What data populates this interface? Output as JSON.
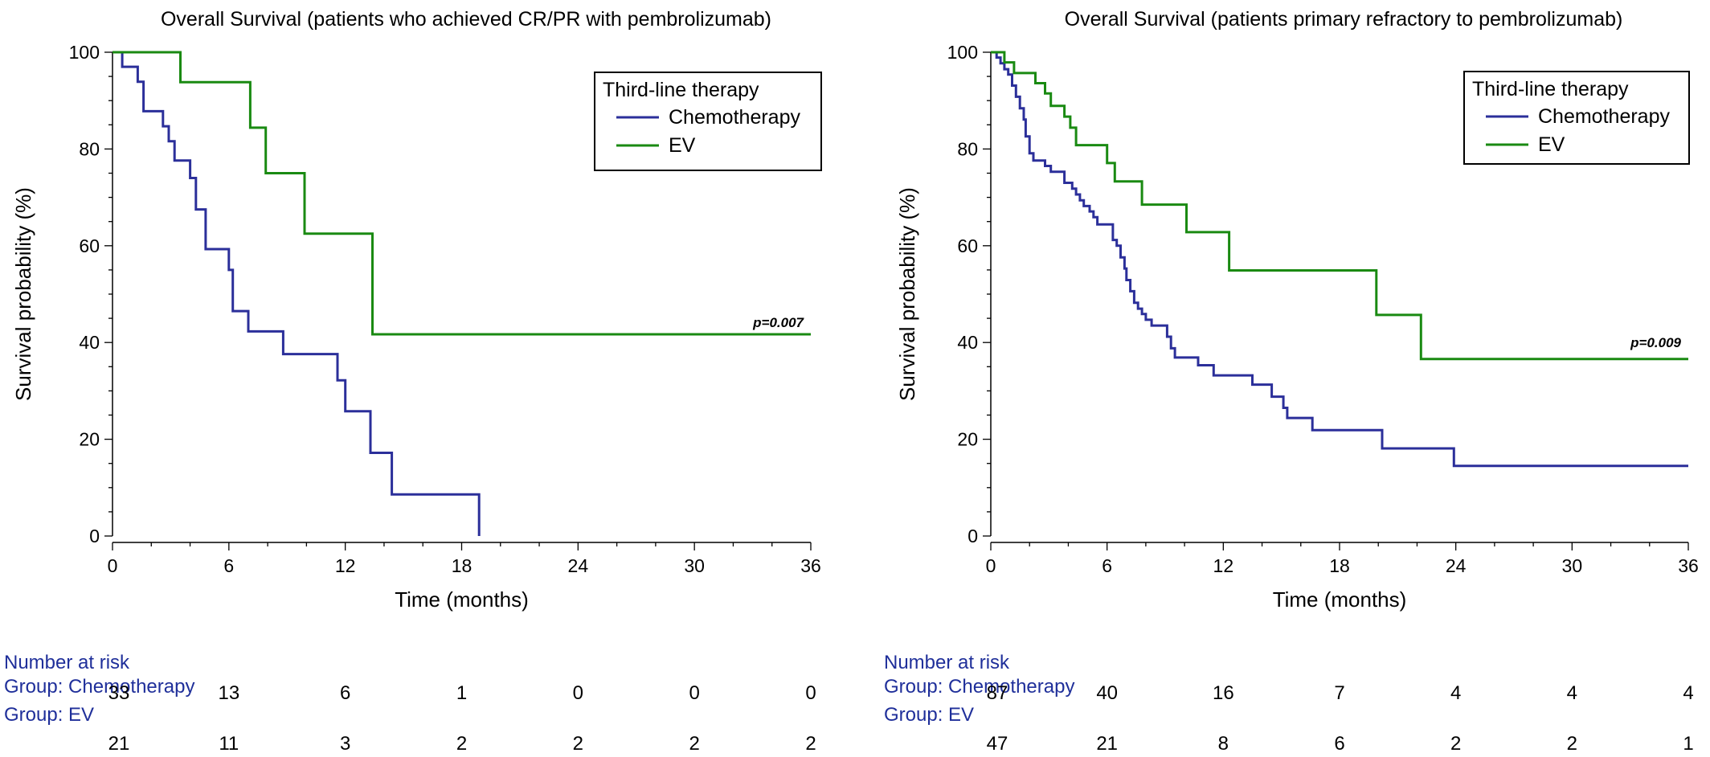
{
  "colors": {
    "chemotherapy": "#2b2f9a",
    "ev": "#1a8a12",
    "risk_header": "#1f2f9a",
    "axis": "#000000"
  },
  "chart_data": [
    {
      "type": "line",
      "step": true,
      "title": "Overall Survival (patients who achieved CR/PR with pembrolizumab)",
      "xlabel": "Time (months)",
      "ylabel": "Survival probability (%)",
      "xlim": [
        0,
        36
      ],
      "ylim": [
        0,
        100
      ],
      "xticks": [
        0,
        6,
        12,
        18,
        24,
        30,
        36
      ],
      "yticks": [
        0,
        20,
        40,
        60,
        80,
        100
      ],
      "grid": false,
      "legend": {
        "title": "Third-line therapy",
        "placement": "top-right"
      },
      "annotation": "p=0.007",
      "series": [
        {
          "name": "Chemotherapy",
          "color": "#2b2f9a",
          "points": [
            [
              0,
              100
            ],
            [
              0.5,
              100
            ],
            [
              0.5,
              97
            ],
            [
              1.3,
              97
            ],
            [
              1.3,
              93.9
            ],
            [
              1.6,
              93.9
            ],
            [
              1.6,
              87.8
            ],
            [
              2.6,
              87.8
            ],
            [
              2.6,
              84.7
            ],
            [
              2.9,
              84.7
            ],
            [
              2.9,
              81.6
            ],
            [
              3.2,
              81.6
            ],
            [
              3.2,
              77.6
            ],
            [
              4.0,
              77.6
            ],
            [
              4.0,
              74
            ],
            [
              4.3,
              74
            ],
            [
              4.3,
              67.5
            ],
            [
              4.8,
              67.5
            ],
            [
              4.8,
              59.3
            ],
            [
              6.0,
              59.3
            ],
            [
              6.0,
              55
            ],
            [
              6.2,
              55
            ],
            [
              6.2,
              46.5
            ],
            [
              7.0,
              46.5
            ],
            [
              7.0,
              42.3
            ],
            [
              8.8,
              42.3
            ],
            [
              8.8,
              37.6
            ],
            [
              11.6,
              37.6
            ],
            [
              11.6,
              32.2
            ],
            [
              12.0,
              32.2
            ],
            [
              12.0,
              25.8
            ],
            [
              13.3,
              25.8
            ],
            [
              13.3,
              17.2
            ],
            [
              14.4,
              17.2
            ],
            [
              14.4,
              8.6
            ],
            [
              18.9,
              8.6
            ],
            [
              18.9,
              0
            ]
          ]
        },
        {
          "name": "EV",
          "color": "#1a8a12",
          "points": [
            [
              0,
              100
            ],
            [
              3.5,
              100
            ],
            [
              3.5,
              93.8
            ],
            [
              7.1,
              93.8
            ],
            [
              7.1,
              84.4
            ],
            [
              7.9,
              84.4
            ],
            [
              7.9,
              75
            ],
            [
              9.9,
              75
            ],
            [
              9.9,
              62.5
            ],
            [
              13.4,
              62.5
            ],
            [
              13.4,
              41.7
            ],
            [
              36,
              41.7
            ]
          ]
        }
      ]
    },
    {
      "type": "line",
      "step": true,
      "title": "Overall Survival (patients primary refractory to pembrolizumab)",
      "xlabel": "Time (months)",
      "ylabel": "Survival probability (%)",
      "xlim": [
        0,
        36
      ],
      "ylim": [
        0,
        100
      ],
      "xticks": [
        0,
        6,
        12,
        18,
        24,
        30,
        36
      ],
      "yticks": [
        0,
        20,
        40,
        60,
        80,
        100
      ],
      "grid": false,
      "legend": {
        "title": "Third-line therapy",
        "placement": "top-right"
      },
      "annotation": "p=0.009",
      "series": [
        {
          "name": "Chemotherapy",
          "color": "#2b2f9a",
          "points": [
            [
              0,
              100
            ],
            [
              0.3,
              100
            ],
            [
              0.3,
              98.9
            ],
            [
              0.5,
              98.9
            ],
            [
              0.5,
              97.7
            ],
            [
              0.7,
              97.7
            ],
            [
              0.7,
              96.5
            ],
            [
              0.9,
              96.5
            ],
            [
              0.9,
              95.4
            ],
            [
              1.1,
              95.4
            ],
            [
              1.1,
              93.1
            ],
            [
              1.3,
              93.1
            ],
            [
              1.3,
              90.8
            ],
            [
              1.5,
              90.8
            ],
            [
              1.5,
              88.4
            ],
            [
              1.7,
              88.4
            ],
            [
              1.7,
              86.1
            ],
            [
              1.8,
              86.1
            ],
            [
              1.8,
              82.6
            ],
            [
              2.0,
              82.6
            ],
            [
              2.0,
              79.1
            ],
            [
              2.2,
              79.1
            ],
            [
              2.2,
              77.6
            ],
            [
              2.8,
              77.6
            ],
            [
              2.8,
              76.5
            ],
            [
              3.1,
              76.5
            ],
            [
              3.1,
              75.3
            ],
            [
              3.8,
              75.3
            ],
            [
              3.8,
              73
            ],
            [
              4.2,
              73
            ],
            [
              4.2,
              71.8
            ],
            [
              4.4,
              71.8
            ],
            [
              4.4,
              70.6
            ],
            [
              4.6,
              70.6
            ],
            [
              4.6,
              69.4
            ],
            [
              4.8,
              69.4
            ],
            [
              4.8,
              68.2
            ],
            [
              5.1,
              68.2
            ],
            [
              5.1,
              67.1
            ],
            [
              5.3,
              67.1
            ],
            [
              5.3,
              65.9
            ],
            [
              5.5,
              65.9
            ],
            [
              5.5,
              64.4
            ],
            [
              6.3,
              64.4
            ],
            [
              6.3,
              61.2
            ],
            [
              6.5,
              61.2
            ],
            [
              6.5,
              60
            ],
            [
              6.7,
              60
            ],
            [
              6.7,
              57.6
            ],
            [
              6.9,
              57.6
            ],
            [
              6.9,
              55.3
            ],
            [
              7.0,
              55.3
            ],
            [
              7.0,
              52.9
            ],
            [
              7.2,
              52.9
            ],
            [
              7.2,
              50.6
            ],
            [
              7.4,
              50.6
            ],
            [
              7.4,
              48.2
            ],
            [
              7.6,
              48.2
            ],
            [
              7.6,
              47
            ],
            [
              7.8,
              47
            ],
            [
              7.8,
              45.9
            ],
            [
              8.0,
              45.9
            ],
            [
              8.0,
              44.7
            ],
            [
              8.3,
              44.7
            ],
            [
              8.3,
              43.5
            ],
            [
              9.1,
              43.5
            ],
            [
              9.1,
              41.2
            ],
            [
              9.3,
              41.2
            ],
            [
              9.3,
              38.8
            ],
            [
              9.5,
              38.8
            ],
            [
              9.5,
              36.9
            ],
            [
              10.7,
              36.9
            ],
            [
              10.7,
              35.3
            ],
            [
              11.5,
              35.3
            ],
            [
              11.5,
              33.2
            ],
            [
              13.5,
              33.2
            ],
            [
              13.5,
              31.3
            ],
            [
              14.5,
              31.3
            ],
            [
              14.5,
              28.8
            ],
            [
              15.1,
              28.8
            ],
            [
              15.1,
              26.5
            ],
            [
              15.3,
              26.5
            ],
            [
              15.3,
              24.4
            ],
            [
              16.6,
              24.4
            ],
            [
              16.6,
              21.9
            ],
            [
              20.2,
              21.9
            ],
            [
              20.2,
              18.1
            ],
            [
              23.9,
              18.1
            ],
            [
              23.9,
              14.5
            ],
            [
              36,
              14.5
            ]
          ]
        },
        {
          "name": "EV",
          "color": "#1a8a12",
          "points": [
            [
              0,
              100
            ],
            [
              0.7,
              100
            ],
            [
              0.7,
              97.9
            ],
            [
              1.2,
              97.9
            ],
            [
              1.2,
              95.7
            ],
            [
              2.3,
              95.7
            ],
            [
              2.3,
              93.6
            ],
            [
              2.8,
              93.6
            ],
            [
              2.8,
              91.5
            ],
            [
              3.1,
              91.5
            ],
            [
              3.1,
              88.9
            ],
            [
              3.8,
              88.9
            ],
            [
              3.8,
              86.7
            ],
            [
              4.1,
              86.7
            ],
            [
              4.1,
              84.4
            ],
            [
              4.4,
              84.4
            ],
            [
              4.4,
              80.8
            ],
            [
              6.0,
              80.8
            ],
            [
              6.0,
              77.1
            ],
            [
              6.4,
              77.1
            ],
            [
              6.4,
              73.3
            ],
            [
              7.8,
              73.3
            ],
            [
              7.8,
              68.5
            ],
            [
              10.1,
              68.5
            ],
            [
              10.1,
              62.8
            ],
            [
              12.3,
              62.8
            ],
            [
              12.3,
              54.9
            ],
            [
              19.9,
              54.9
            ],
            [
              19.9,
              45.7
            ],
            [
              22.2,
              45.7
            ],
            [
              22.2,
              36.6
            ],
            [
              36,
              36.6
            ]
          ]
        }
      ]
    }
  ],
  "risk_tables": [
    {
      "header": "Number at risk",
      "groups": [
        {
          "label": "Group: Chemotherapy",
          "values": [
            33,
            13,
            6,
            1,
            0,
            0,
            0
          ]
        },
        {
          "label": "Group: EV",
          "values": [
            21,
            11,
            3,
            2,
            2,
            2,
            2
          ]
        }
      ]
    },
    {
      "header": "Number at risk",
      "groups": [
        {
          "label": "Group: Chemotherapy",
          "values": [
            87,
            40,
            16,
            7,
            4,
            4,
            4
          ]
        },
        {
          "label": "Group: EV",
          "values": [
            47,
            21,
            8,
            6,
            2,
            2,
            1
          ]
        }
      ]
    }
  ]
}
